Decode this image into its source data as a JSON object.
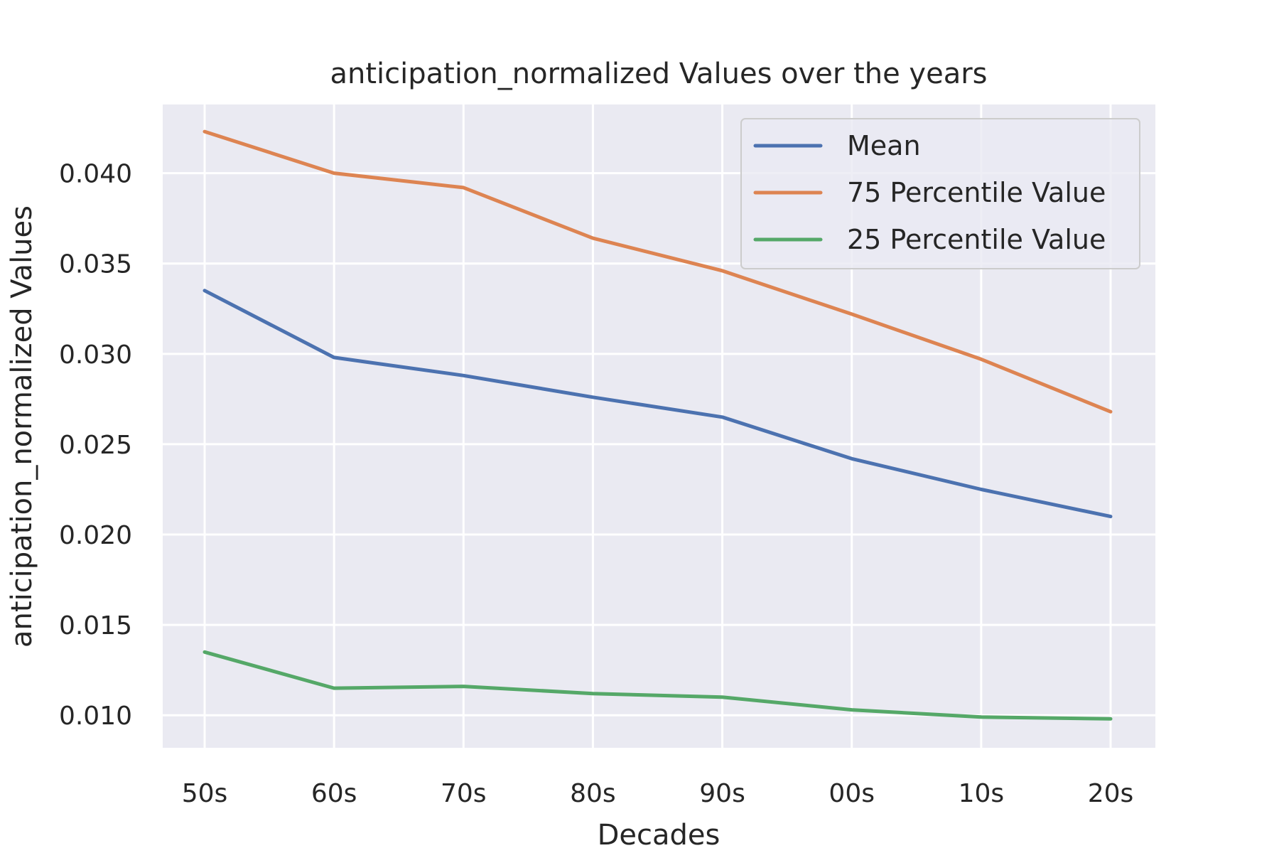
{
  "chart_data": {
    "type": "line",
    "title": "anticipation_normalized Values over the years",
    "xlabel": "Decades",
    "ylabel": "anticipation_normalized Values",
    "categories": [
      "50s",
      "60s",
      "70s",
      "80s",
      "90s",
      "00s",
      "10s",
      "20s"
    ],
    "ylim": [
      0.0082,
      0.0438
    ],
    "yticks": [
      "0.010",
      "0.015",
      "0.020",
      "0.025",
      "0.030",
      "0.035",
      "0.040"
    ],
    "grid": true,
    "legend_position": "top-right",
    "series": [
      {
        "name": "Mean",
        "color": "#4c72b0",
        "values": [
          0.0335,
          0.0298,
          0.0288,
          0.0276,
          0.0265,
          0.0242,
          0.0225,
          0.021
        ]
      },
      {
        "name": "75 Percentile Value",
        "color": "#dd8452",
        "values": [
          0.0423,
          0.04,
          0.0392,
          0.0364,
          0.0346,
          0.0322,
          0.0297,
          0.0268
        ]
      },
      {
        "name": "25 Percentile Value",
        "color": "#55a868",
        "values": [
          0.0135,
          0.0115,
          0.0116,
          0.0112,
          0.011,
          0.0103,
          0.0099,
          0.0098
        ]
      }
    ]
  }
}
